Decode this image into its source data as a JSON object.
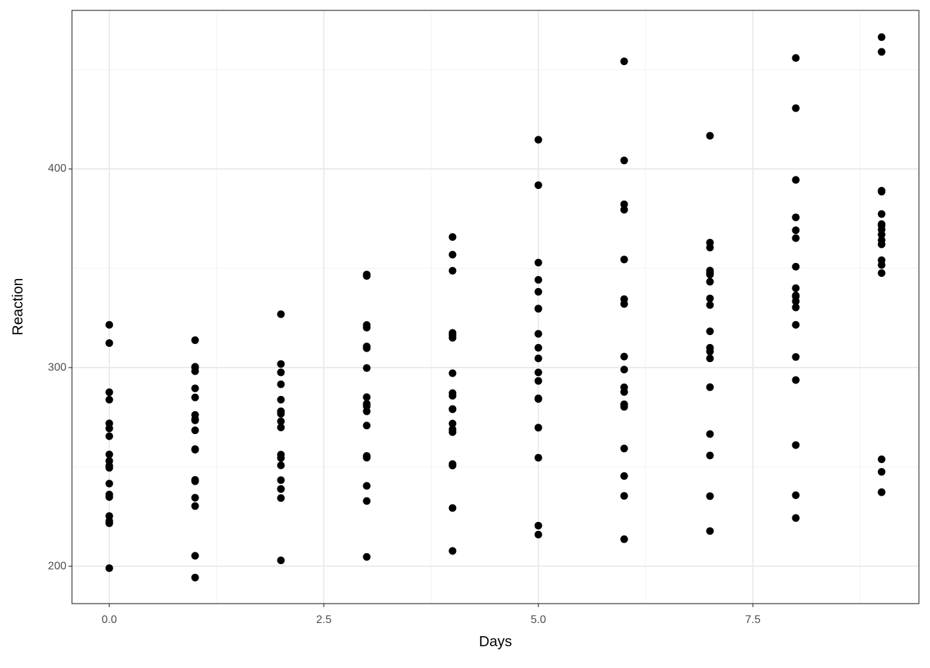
{
  "chart_data": {
    "type": "scatter",
    "x_label": "Days",
    "y_label": "Reaction",
    "color": "#000000",
    "grid": true,
    "xlim": [
      -0.435,
      9.435
    ],
    "ylim": [
      181.2,
      479.8
    ],
    "xticks": [
      {
        "value": 0,
        "label": "0.0"
      },
      {
        "value": 2.5,
        "label": "2.5"
      },
      {
        "value": 5,
        "label": "5.0"
      },
      {
        "value": 7.5,
        "label": "7.5"
      }
    ],
    "yticks": [
      200,
      300,
      400
    ],
    "x": [
      0,
      0,
      0,
      0,
      0,
      0,
      0,
      0,
      0,
      0,
      0,
      0,
      0,
      0,
      0,
      0,
      0,
      0,
      1,
      1,
      1,
      1,
      1,
      1,
      1,
      1,
      1,
      1,
      1,
      1,
      1,
      1,
      1,
      1,
      1,
      1,
      2,
      2,
      2,
      2,
      2,
      2,
      2,
      2,
      2,
      2,
      2,
      2,
      2,
      2,
      2,
      2,
      2,
      2,
      3,
      3,
      3,
      3,
      3,
      3,
      3,
      3,
      3,
      3,
      3,
      3,
      3,
      3,
      3,
      3,
      3,
      3,
      4,
      4,
      4,
      4,
      4,
      4,
      4,
      4,
      4,
      4,
      4,
      4,
      4,
      4,
      4,
      4,
      4,
      4,
      5,
      5,
      5,
      5,
      5,
      5,
      5,
      5,
      5,
      5,
      5,
      5,
      5,
      5,
      5,
      5,
      5,
      5,
      6,
      6,
      6,
      6,
      6,
      6,
      6,
      6,
      6,
      6,
      6,
      6,
      6,
      6,
      6,
      6,
      6,
      6,
      7,
      7,
      7,
      7,
      7,
      7,
      7,
      7,
      7,
      7,
      7,
      7,
      7,
      7,
      7,
      7,
      7,
      7,
      8,
      8,
      8,
      8,
      8,
      8,
      8,
      8,
      8,
      8,
      8,
      8,
      8,
      8,
      8,
      8,
      8,
      8,
      9,
      9,
      9,
      9,
      9,
      9,
      9,
      9,
      9,
      9,
      9,
      9,
      9,
      9,
      9,
      9,
      9,
      9
    ],
    "values": [
      249.56,
      222.73,
      199.05,
      321.54,
      287.61,
      234.86,
      283.84,
      265.47,
      241.61,
      312.36,
      236.1,
      256.29,
      250.53,
      221.68,
      271.92,
      225.26,
      253.0,
      269.41,
      258.7,
      205.27,
      194.33,
      300.4,
      285.0,
      242.81,
      289.56,
      276.2,
      273.95,
      313.8,
      230.31,
      243.46,
      300.06,
      298.19,
      268.44,
      234.52,
      259.0,
      273.47,
      250.8,
      202.98,
      234.32,
      283.86,
      301.82,
      272.96,
      276.77,
      243.36,
      254.49,
      291.61,
      238.92,
      256.2,
      269.89,
      326.88,
      277.89,
      238.9,
      278.0,
      297.6,
      321.44,
      204.71,
      232.84,
      285.13,
      320.12,
      309.77,
      299.8,
      254.67,
      270.84,
      346.12,
      254.92,
      255.53,
      280.58,
      346.85,
      281.79,
      240.47,
      278.0,
      310.63,
      356.85,
      207.72,
      229.31,
      285.8,
      316.28,
      317.46,
      297.17,
      279.02,
      251.45,
      365.73,
      250.71,
      268.92,
      271.83,
      348.74,
      279.17,
      267.54,
      315.0,
      287.17,
      414.69,
      215.96,
      220.46,
      297.59,
      293.32,
      309.99,
      338.17,
      284.19,
      254.64,
      391.84,
      269.77,
      329.72,
      304.63,
      352.83,
      284.51,
      344.19,
      317.0,
      329.61,
      382.2,
      213.63,
      235.42,
      280.24,
      290.08,
      454.16,
      332.02,
      305.53,
      245.45,
      404.26,
      281.56,
      379.44,
      287.75,
      354.43,
      259.27,
      281.15,
      299.0,
      334.48,
      290.15,
      217.73,
      255.75,
      318.26,
      334.82,
      346.83,
      348.84,
      331.5,
      235.31,
      416.69,
      308.1,
      362.91,
      266.56,
      360.43,
      304.63,
      347.59,
      310.0,
      343.22,
      430.59,
      224.3,
      261.01,
      305.35,
      293.75,
      330.3,
      333.36,
      335.75,
      235.76,
      455.86,
      336.28,
      394.49,
      321.54,
      375.64,
      350.78,
      365.16,
      340.0,
      369.14,
      466.35,
      237.31,
      247.52,
      354.05,
      371.58,
      253.86,
      362.04,
      377.3,
      237.25,
      458.92,
      351.65,
      389.05,
      347.56,
      388.54,
      369.47,
      372.24,
      367.0,
      364.12
    ]
  }
}
